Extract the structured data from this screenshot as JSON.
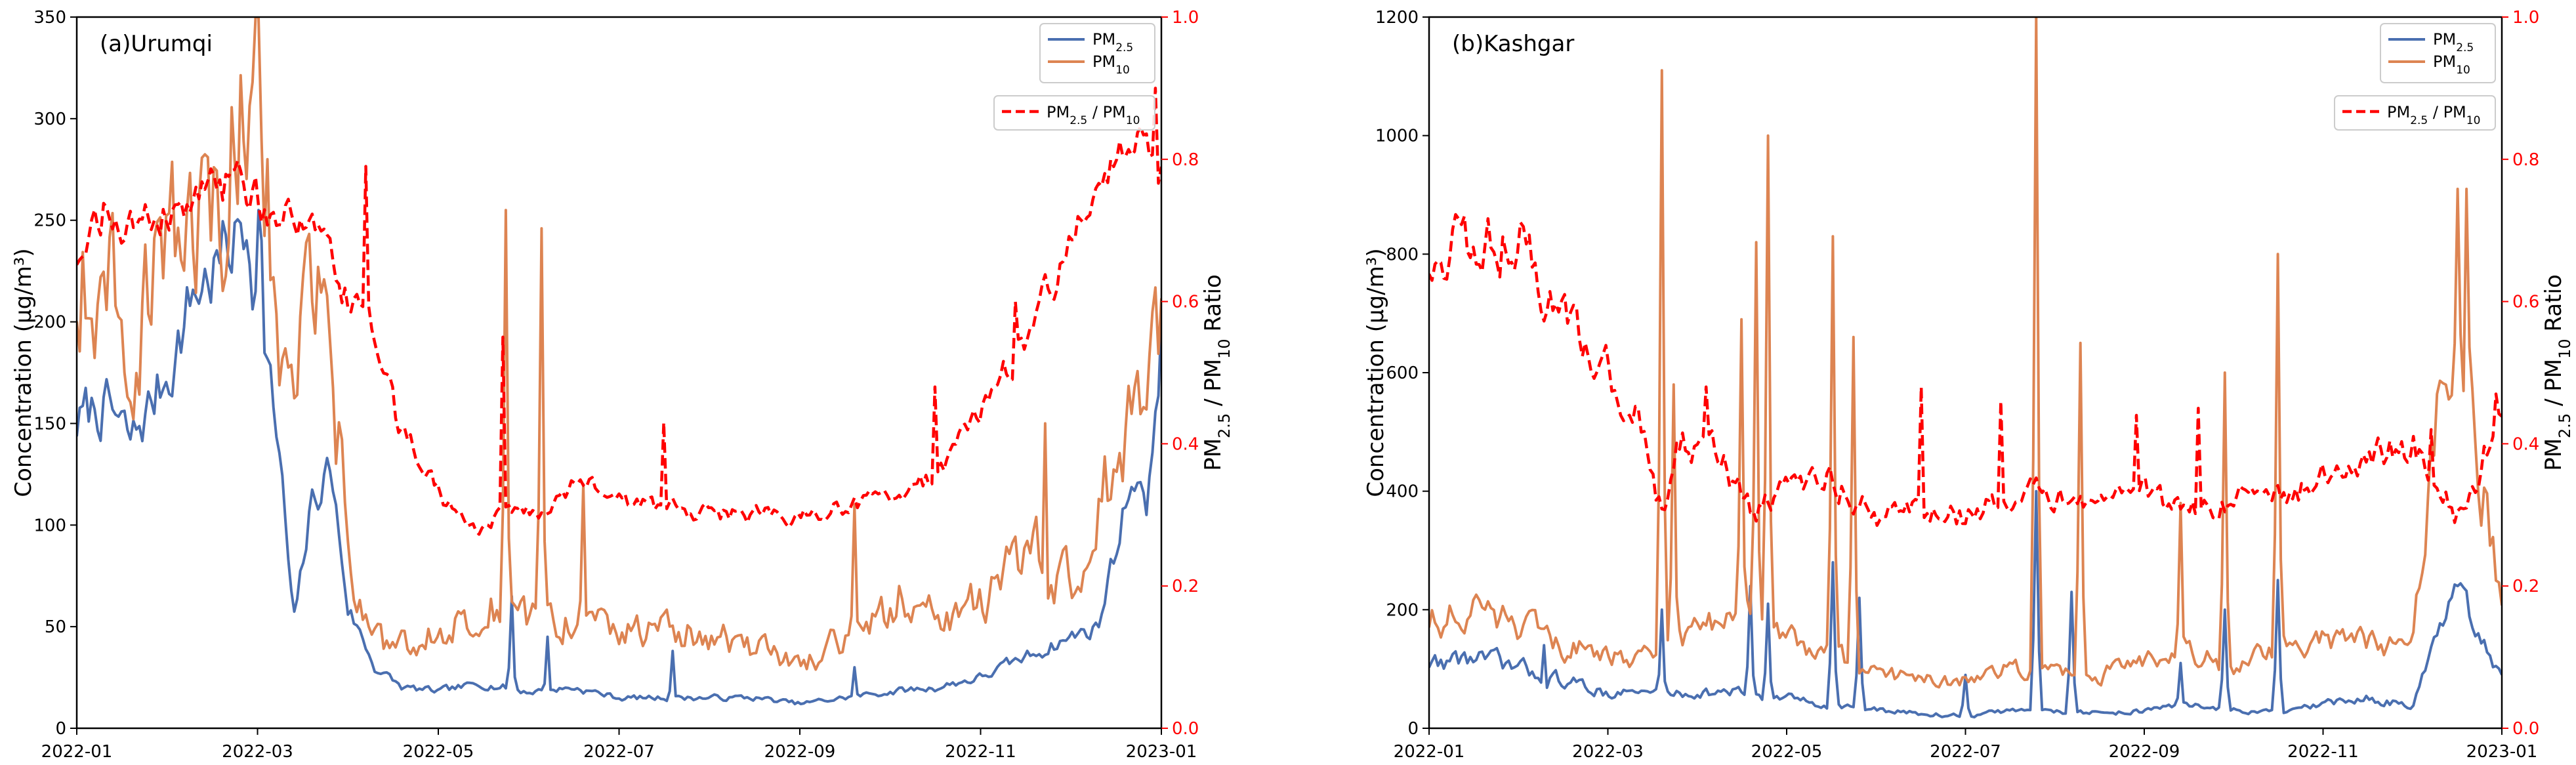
{
  "chart_data": [
    {
      "type": "line",
      "panel_label": "(a)Urumqi",
      "xlabel": "",
      "ylabel": "Concentration (μg/m³)",
      "ylabel_right": {
        "prefix": "PM",
        "sub": "2.5",
        "mid": " / PM",
        "sub2": "10",
        "suffix": " Ratio"
      },
      "x_ticks": [
        "2022-01",
        "2022-03",
        "2022-05",
        "2022-07",
        "2022-09",
        "2022-11",
        "2023-01"
      ],
      "x_tick_months": [
        0,
        2,
        4,
        6,
        8,
        10,
        12
      ],
      "ylim": [
        0,
        350
      ],
      "y_ticks": [
        0,
        50,
        100,
        150,
        200,
        250,
        300,
        350
      ],
      "y2lim": [
        0.0,
        1.0
      ],
      "y2_ticks": [
        "0.0",
        "0.2",
        "0.4",
        "0.6",
        "0.8",
        "1.0"
      ],
      "legend_main": [
        {
          "base": "PM",
          "sub": "2.5",
          "color": "#4a6fb0"
        },
        {
          "base": "PM",
          "sub": "10",
          "color": "#dd8452"
        }
      ],
      "legend_ratio": {
        "base": "PM",
        "sub": "2.5",
        "mid": " / PM",
        "sub2": "10",
        "color": "#ff0000"
      },
      "series": [
        {
          "name": "PM2.5",
          "color": "#4a6fb0",
          "axis": "left",
          "anchors": [
            [
              0,
              150
            ],
            [
              0.3,
              160
            ],
            [
              0.6,
              140
            ],
            [
              1.0,
              175
            ],
            [
              1.3,
              215
            ],
            [
              1.6,
              230
            ],
            [
              1.9,
              250
            ],
            [
              2.1,
              180
            ],
            [
              2.25,
              130
            ],
            [
              2.4,
              50
            ],
            [
              2.6,
              110
            ],
            [
              2.8,
              130
            ],
            [
              3.0,
              60
            ],
            [
              3.3,
              30
            ],
            [
              3.6,
              20
            ],
            [
              4.0,
              18
            ],
            [
              4.5,
              22
            ],
            [
              5.0,
              18
            ],
            [
              5.5,
              20
            ],
            [
              6.0,
              15
            ],
            [
              6.5,
              15
            ],
            [
              7.0,
              15
            ],
            [
              7.5,
              15
            ],
            [
              8.0,
              12
            ],
            [
              8.5,
              15
            ],
            [
              9.0,
              18
            ],
            [
              9.5,
              20
            ],
            [
              10.0,
              25
            ],
            [
              10.5,
              35
            ],
            [
              11.0,
              45
            ],
            [
              11.3,
              50
            ],
            [
              11.5,
              90
            ],
            [
              11.7,
              130
            ],
            [
              11.85,
              110
            ],
            [
              12.0,
              200
            ]
          ],
          "noise": 0.18,
          "spikes": [
            [
              2.0,
              255
            ],
            [
              2.05,
              240
            ],
            [
              4.8,
              65
            ],
            [
              5.2,
              45
            ],
            [
              6.6,
              38
            ],
            [
              8.6,
              30
            ],
            [
              11.85,
              105
            ]
          ]
        },
        {
          "name": "PM10",
          "color": "#dd8452",
          "axis": "left",
          "anchors": [
            [
              0,
              215
            ],
            [
              0.3,
              230
            ],
            [
              0.6,
              200
            ],
            [
              0.9,
              230
            ],
            [
              1.2,
              235
            ],
            [
              1.5,
              270
            ],
            [
              1.8,
              300
            ],
            [
              2.0,
              310
            ],
            [
              2.2,
              230
            ],
            [
              2.35,
              160
            ],
            [
              2.5,
              200
            ],
            [
              2.7,
              200
            ],
            [
              2.9,
              140
            ],
            [
              3.1,
              70
            ],
            [
              3.4,
              40
            ],
            [
              3.7,
              40
            ],
            [
              4.0,
              50
            ],
            [
              4.3,
              55
            ],
            [
              4.6,
              60
            ],
            [
              5.0,
              50
            ],
            [
              5.5,
              55
            ],
            [
              6.0,
              45
            ],
            [
              6.5,
              50
            ],
            [
              7.0,
              45
            ],
            [
              7.5,
              40
            ],
            [
              8.0,
              30
            ],
            [
              8.5,
              45
            ],
            [
              9.0,
              55
            ],
            [
              9.5,
              55
            ],
            [
              10.0,
              60
            ],
            [
              10.3,
              75
            ],
            [
              10.6,
              85
            ],
            [
              11.0,
              70
            ],
            [
              11.3,
              110
            ],
            [
              11.6,
              140
            ],
            [
              11.8,
              160
            ],
            [
              12.0,
              200
            ]
          ],
          "noise": 0.35,
          "spikes": [
            [
              1.95,
              318
            ],
            [
              2.1,
              280
            ],
            [
              4.75,
              255
            ],
            [
              5.15,
              246
            ],
            [
              5.6,
              120
            ],
            [
              8.6,
              110
            ],
            [
              9.1,
              70
            ],
            [
              10.7,
              150
            ],
            [
              11.9,
              205
            ]
          ]
        },
        {
          "name": "PM2.5 / PM10",
          "color": "#ff0000",
          "axis": "right",
          "dashed": true,
          "anchors": [
            [
              0,
              0.66
            ],
            [
              0.3,
              0.73
            ],
            [
              0.6,
              0.7
            ],
            [
              1.0,
              0.72
            ],
            [
              1.4,
              0.74
            ],
            [
              1.8,
              0.78
            ],
            [
              2.2,
              0.72
            ],
            [
              2.6,
              0.7
            ],
            [
              3.0,
              0.6
            ],
            [
              3.3,
              0.55
            ],
            [
              3.6,
              0.42
            ],
            [
              4.0,
              0.33
            ],
            [
              4.4,
              0.28
            ],
            [
              4.8,
              0.3
            ],
            [
              5.2,
              0.3
            ],
            [
              5.6,
              0.35
            ],
            [
              6.0,
              0.32
            ],
            [
              6.5,
              0.31
            ],
            [
              7.0,
              0.3
            ],
            [
              7.5,
              0.3
            ],
            [
              8.0,
              0.3
            ],
            [
              8.5,
              0.31
            ],
            [
              9.0,
              0.33
            ],
            [
              9.5,
              0.35
            ],
            [
              10.0,
              0.45
            ],
            [
              10.5,
              0.55
            ],
            [
              11.0,
              0.68
            ],
            [
              11.5,
              0.8
            ],
            [
              11.8,
              0.82
            ],
            [
              12.0,
              0.8
            ]
          ],
          "noise": 0.08,
          "spikes": [
            [
              3.2,
              0.79
            ],
            [
              3.5,
              0.48
            ],
            [
              4.7,
              0.55
            ],
            [
              6.5,
              0.43
            ],
            [
              9.5,
              0.48
            ],
            [
              10.4,
              0.6
            ],
            [
              11.95,
              0.9
            ]
          ]
        }
      ]
    },
    {
      "type": "line",
      "panel_label": "(b)Kashgar",
      "xlabel": "",
      "ylabel": "Concentration (μg/m³)",
      "ylabel_right": {
        "prefix": "PM",
        "sub": "2.5",
        "mid": " / PM",
        "sub2": "10",
        "suffix": " Ratio"
      },
      "x_ticks": [
        "2022-01",
        "2022-03",
        "2022-05",
        "2022-07",
        "2022-09",
        "2022-11",
        "2023-01"
      ],
      "x_tick_months": [
        0,
        2,
        4,
        6,
        8,
        10,
        12
      ],
      "ylim": [
        0,
        1200
      ],
      "y_ticks": [
        0,
        200,
        400,
        600,
        800,
        1000,
        1200
      ],
      "y2lim": [
        0.0,
        1.0
      ],
      "y2_ticks": [
        "0.0",
        "0.2",
        "0.4",
        "0.6",
        "0.8",
        "1.0"
      ],
      "legend_main": [
        {
          "base": "PM",
          "sub": "2.5",
          "color": "#4a6fb0"
        },
        {
          "base": "PM",
          "sub": "10",
          "color": "#dd8452"
        }
      ],
      "legend_ratio": {
        "base": "PM",
        "sub": "2.5",
        "mid": " / PM",
        "sub2": "10",
        "color": "#ff0000"
      },
      "series": [
        {
          "name": "PM2.5",
          "color": "#4a6fb0",
          "axis": "left",
          "anchors": [
            [
              0,
              110
            ],
            [
              0.5,
              120
            ],
            [
              1.0,
              100
            ],
            [
              1.5,
              80
            ],
            [
              2.0,
              60
            ],
            [
              2.5,
              60
            ],
            [
              3.0,
              60
            ],
            [
              3.5,
              60
            ],
            [
              4.0,
              50
            ],
            [
              4.5,
              40
            ],
            [
              5.0,
              30
            ],
            [
              5.5,
              25
            ],
            [
              6.0,
              20
            ],
            [
              6.5,
              30
            ],
            [
              7.0,
              30
            ],
            [
              7.5,
              25
            ],
            [
              8.0,
              30
            ],
            [
              8.5,
              40
            ],
            [
              9.0,
              30
            ],
            [
              9.5,
              25
            ],
            [
              10.0,
              40
            ],
            [
              10.5,
              50
            ],
            [
              11.0,
              40
            ],
            [
              11.5,
              230
            ],
            [
              11.7,
              150
            ],
            [
              12.0,
              90
            ]
          ],
          "noise": 0.3,
          "spikes": [
            [
              1.3,
              140
            ],
            [
              2.6,
              200
            ],
            [
              3.6,
              240
            ],
            [
              3.8,
              210
            ],
            [
              4.5,
              280
            ],
            [
              4.8,
              220
            ],
            [
              6.0,
              90
            ],
            [
              6.8,
              400
            ],
            [
              7.2,
              230
            ],
            [
              8.4,
              110
            ],
            [
              8.9,
              200
            ],
            [
              9.5,
              250
            ],
            [
              11.5,
              240
            ]
          ]
        },
        {
          "name": "PM10",
          "color": "#dd8452",
          "axis": "left",
          "anchors": [
            [
              0,
              180
            ],
            [
              0.5,
              200
            ],
            [
              1.0,
              170
            ],
            [
              1.5,
              140
            ],
            [
              2.0,
              120
            ],
            [
              2.5,
              130
            ],
            [
              3.0,
              160
            ],
            [
              3.5,
              190
            ],
            [
              4.0,
              160
            ],
            [
              4.5,
              120
            ],
            [
              5.0,
              90
            ],
            [
              5.5,
              80
            ],
            [
              6.0,
              80
            ],
            [
              6.5,
              100
            ],
            [
              7.0,
              100
            ],
            [
              7.5,
              90
            ],
            [
              8.0,
              110
            ],
            [
              8.5,
              130
            ],
            [
              9.0,
              100
            ],
            [
              9.5,
              130
            ],
            [
              10.0,
              150
            ],
            [
              10.5,
              140
            ],
            [
              11.0,
              130
            ],
            [
              11.5,
              800
            ],
            [
              11.7,
              500
            ],
            [
              12.0,
              220
            ]
          ],
          "noise": 0.3,
          "spikes": [
            [
              2.6,
              1110
            ],
            [
              2.75,
              580
            ],
            [
              3.5,
              690
            ],
            [
              3.65,
              820
            ],
            [
              3.8,
              1000
            ],
            [
              4.5,
              830
            ],
            [
              4.75,
              660
            ],
            [
              6.8,
              1200
            ],
            [
              7.3,
              650
            ],
            [
              8.4,
              380
            ],
            [
              8.9,
              600
            ],
            [
              9.5,
              800
            ],
            [
              11.5,
              910
            ],
            [
              11.6,
              910
            ]
          ]
        },
        {
          "name": "PM2.5 / PM10",
          "color": "#ff0000",
          "axis": "right",
          "dashed": true,
          "anchors": [
            [
              0,
              0.65
            ],
            [
              0.3,
              0.7
            ],
            [
              0.6,
              0.68
            ],
            [
              1.0,
              0.7
            ],
            [
              1.3,
              0.6
            ],
            [
              1.6,
              0.55
            ],
            [
              2.0,
              0.5
            ],
            [
              2.3,
              0.45
            ],
            [
              2.6,
              0.3
            ],
            [
              2.8,
              0.4
            ],
            [
              3.2,
              0.4
            ],
            [
              3.6,
              0.3
            ],
            [
              4.0,
              0.33
            ],
            [
              4.5,
              0.35
            ],
            [
              5.0,
              0.3
            ],
            [
              5.5,
              0.3
            ],
            [
              6.0,
              0.3
            ],
            [
              6.5,
              0.32
            ],
            [
              7.0,
              0.33
            ],
            [
              7.5,
              0.33
            ],
            [
              8.0,
              0.33
            ],
            [
              8.5,
              0.3
            ],
            [
              9.0,
              0.32
            ],
            [
              9.5,
              0.33
            ],
            [
              10.0,
              0.35
            ],
            [
              10.5,
              0.38
            ],
            [
              11.0,
              0.4
            ],
            [
              11.5,
              0.3
            ],
            [
              11.7,
              0.35
            ],
            [
              12.0,
              0.45
            ]
          ],
          "noise": 0.12,
          "spikes": [
            [
              0.4,
              0.72
            ],
            [
              1.5,
              0.61
            ],
            [
              3.1,
              0.48
            ],
            [
              5.5,
              0.48
            ],
            [
              6.4,
              0.46
            ],
            [
              7.9,
              0.44
            ],
            [
              8.6,
              0.45
            ],
            [
              11.2,
              0.42
            ],
            [
              11.95,
              0.47
            ]
          ]
        }
      ]
    }
  ]
}
